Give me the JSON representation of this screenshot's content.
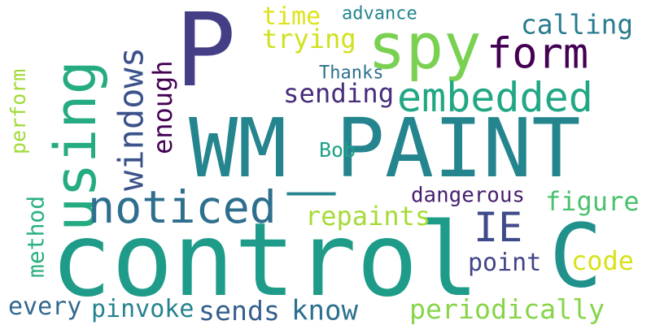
{
  "words": [
    {
      "text": "P",
      "color": "#433e85",
      "rotated": false
    },
    {
      "text": "WM_PAINT",
      "color": "#25858e",
      "rotated": false
    },
    {
      "text": "control",
      "color": "#1e9c89",
      "rotated": false
    },
    {
      "text": "C",
      "color": "#21918c",
      "rotated": false
    },
    {
      "text": "spy",
      "color": "#7ad151",
      "rotated": false
    },
    {
      "text": "using",
      "color": "#25ab82",
      "rotated": true
    },
    {
      "text": "noticed",
      "color": "#2e6f8e",
      "rotated": false
    },
    {
      "text": "embedded",
      "color": "#22a785",
      "rotated": false
    },
    {
      "text": "form",
      "color": "#440154",
      "rotated": false
    },
    {
      "text": "windows",
      "color": "#3b528b",
      "rotated": true
    },
    {
      "text": "IE",
      "color": "#3e4a89",
      "rotated": false
    },
    {
      "text": "calling",
      "color": "#287c8e",
      "rotated": false
    },
    {
      "text": "advance",
      "color": "#24868e",
      "rotated": false
    },
    {
      "text": "time",
      "color": "#dde318",
      "rotated": false
    },
    {
      "text": "trying",
      "color": "#d0e11c",
      "rotated": false
    },
    {
      "text": "Thanks",
      "color": "#2c728e",
      "rotated": false
    },
    {
      "text": "sending",
      "color": "#472d7b",
      "rotated": false
    },
    {
      "text": "enough",
      "color": "#440154",
      "rotated": true
    },
    {
      "text": "perform",
      "color": "#a0da39",
      "rotated": true
    },
    {
      "text": "Bob",
      "color": "#1fa187",
      "rotated": false
    },
    {
      "text": "dangerous",
      "color": "#481f70",
      "rotated": false
    },
    {
      "text": "figure",
      "color": "#4ac16d",
      "rotated": false
    },
    {
      "text": "repaints",
      "color": "#a5db36",
      "rotated": false
    },
    {
      "text": "method",
      "color": "#2ab07f",
      "rotated": true
    },
    {
      "text": "point",
      "color": "#414487",
      "rotated": false
    },
    {
      "text": "code",
      "color": "#d8e219",
      "rotated": false
    },
    {
      "text": "every",
      "color": "#31688e",
      "rotated": false
    },
    {
      "text": "pinvoke",
      "color": "#26828e",
      "rotated": false
    },
    {
      "text": "sends",
      "color": "#355f8d",
      "rotated": false
    },
    {
      "text": "know",
      "color": "#2d708e",
      "rotated": false
    },
    {
      "text": "periodically",
      "color": "#86d549",
      "rotated": false
    }
  ]
}
